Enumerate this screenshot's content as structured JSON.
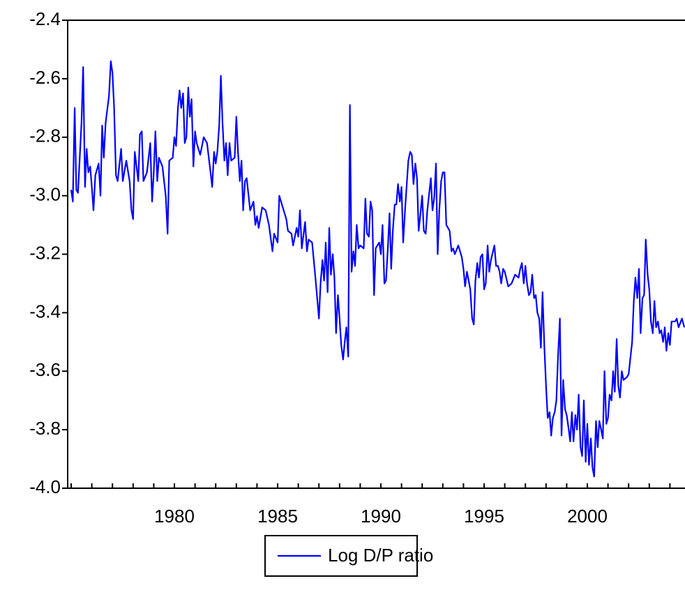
{
  "chart_data": {
    "type": "line",
    "x": [
      1975.0,
      1975.08,
      1975.17,
      1975.25,
      1975.33,
      1975.5,
      1975.58,
      1975.67,
      1975.75,
      1975.83,
      1975.92,
      1976.0,
      1976.08,
      1976.17,
      1976.33,
      1976.42,
      1976.5,
      1976.58,
      1976.67,
      1976.83,
      1976.92,
      1977.0,
      1977.08,
      1977.17,
      1977.25,
      1977.42,
      1977.5,
      1977.67,
      1977.83,
      1977.92,
      1978.0,
      1978.08,
      1978.25,
      1978.33,
      1978.42,
      1978.5,
      1978.67,
      1978.83,
      1978.92,
      1979.0,
      1979.08,
      1979.17,
      1979.25,
      1979.42,
      1979.58,
      1979.67,
      1979.75,
      1979.92,
      1980.0,
      1980.08,
      1980.17,
      1980.25,
      1980.33,
      1980.42,
      1980.5,
      1980.58,
      1980.67,
      1980.75,
      1980.83,
      1980.92,
      1981.0,
      1981.08,
      1981.25,
      1981.42,
      1981.58,
      1981.75,
      1981.83,
      1981.92,
      1982.0,
      1982.08,
      1982.17,
      1982.25,
      1982.33,
      1982.42,
      1982.5,
      1982.58,
      1982.67,
      1982.75,
      1982.92,
      1983.0,
      1983.08,
      1983.17,
      1983.25,
      1983.33,
      1983.42,
      1983.5,
      1983.67,
      1983.83,
      1983.92,
      1984.0,
      1984.08,
      1984.25,
      1984.42,
      1984.58,
      1984.75,
      1984.83,
      1985.0,
      1985.08,
      1985.25,
      1985.42,
      1985.5,
      1985.67,
      1985.75,
      1985.92,
      1986.0,
      1986.08,
      1986.17,
      1986.33,
      1986.42,
      1986.5,
      1986.67,
      1986.83,
      1987.0,
      1987.08,
      1987.17,
      1987.25,
      1987.33,
      1987.42,
      1987.5,
      1987.58,
      1987.67,
      1987.75,
      1987.83,
      1987.92,
      1988.0,
      1988.08,
      1988.17,
      1988.25,
      1988.33,
      1988.42,
      1988.5,
      1988.58,
      1988.67,
      1988.75,
      1988.83,
      1988.92,
      1989.0,
      1989.17,
      1989.25,
      1989.33,
      1989.42,
      1989.5,
      1989.58,
      1989.67,
      1989.75,
      1989.83,
      1989.92,
      1990.0,
      1990.08,
      1990.17,
      1990.25,
      1990.33,
      1990.42,
      1990.5,
      1990.58,
      1990.67,
      1990.75,
      1990.83,
      1990.92,
      1991.0,
      1991.08,
      1991.17,
      1991.33,
      1991.42,
      1991.5,
      1991.58,
      1991.67,
      1991.75,
      1991.83,
      1991.92,
      1992.0,
      1992.08,
      1992.17,
      1992.25,
      1992.42,
      1992.5,
      1992.58,
      1992.67,
      1992.75,
      1992.83,
      1992.92,
      1993.0,
      1993.08,
      1993.17,
      1993.33,
      1993.42,
      1993.5,
      1993.58,
      1993.75,
      1993.92,
      1994.0,
      1994.08,
      1994.17,
      1994.25,
      1994.33,
      1994.42,
      1994.5,
      1994.58,
      1994.67,
      1994.75,
      1994.83,
      1994.92,
      1995.0,
      1995.08,
      1995.17,
      1995.25,
      1995.33,
      1995.5,
      1995.58,
      1995.67,
      1995.75,
      1995.83,
      1995.92,
      1996.0,
      1996.17,
      1996.33,
      1996.5,
      1996.67,
      1996.75,
      1996.83,
      1996.92,
      1997.0,
      1997.08,
      1997.17,
      1997.25,
      1997.33,
      1997.42,
      1997.5,
      1997.58,
      1997.67,
      1997.75,
      1997.83,
      1997.92,
      1998.0,
      1998.08,
      1998.17,
      1998.25,
      1998.33,
      1998.42,
      1998.5,
      1998.58,
      1998.67,
      1998.75,
      1998.83,
      1998.92,
      1999.0,
      1999.08,
      1999.17,
      1999.25,
      1999.33,
      1999.42,
      1999.5,
      1999.58,
      1999.67,
      1999.75,
      1999.83,
      1999.92,
      2000.0,
      2000.08,
      2000.17,
      2000.25,
      2000.33,
      2000.42,
      2000.5,
      2000.58,
      2000.67,
      2000.75,
      2000.83,
      2000.92,
      2001.0,
      2001.08,
      2001.17,
      2001.25,
      2001.33,
      2001.42,
      2001.5,
      2001.58,
      2001.67,
      2001.75,
      2001.92,
      2002.0,
      2002.17,
      2002.25,
      2002.33,
      2002.42,
      2002.5,
      2002.58,
      2002.67,
      2002.75,
      2002.83,
      2002.92,
      2003.0,
      2003.08,
      2003.17,
      2003.25,
      2003.33,
      2003.42,
      2003.5,
      2003.58,
      2003.67,
      2003.75,
      2003.83,
      2003.92,
      2004.0,
      2004.08,
      2004.25,
      2004.33,
      2004.42,
      2004.58,
      2004.7
    ],
    "series": [
      {
        "name": "Log D/P ratio",
        "color": "#0000ff",
        "values": [
          -2.98,
          -3.02,
          -2.7,
          -2.98,
          -2.99,
          -2.75,
          -2.56,
          -2.97,
          -2.84,
          -2.92,
          -2.9,
          -2.97,
          -3.05,
          -2.93,
          -2.89,
          -3.0,
          -2.76,
          -2.87,
          -2.75,
          -2.66,
          -2.54,
          -2.58,
          -2.7,
          -2.93,
          -2.95,
          -2.84,
          -2.95,
          -2.88,
          -2.95,
          -3.05,
          -3.08,
          -2.85,
          -2.95,
          -2.79,
          -2.78,
          -2.95,
          -2.92,
          -2.82,
          -3.02,
          -2.92,
          -2.78,
          -2.95,
          -2.87,
          -2.9,
          -3.0,
          -3.13,
          -2.88,
          -2.87,
          -2.8,
          -2.83,
          -2.7,
          -2.64,
          -2.7,
          -2.65,
          -2.82,
          -2.8,
          -2.63,
          -2.73,
          -2.67,
          -2.9,
          -2.78,
          -2.82,
          -2.86,
          -2.8,
          -2.82,
          -2.92,
          -2.97,
          -2.85,
          -2.89,
          -2.85,
          -2.76,
          -2.59,
          -2.75,
          -2.88,
          -2.82,
          -2.93,
          -2.82,
          -2.88,
          -2.87,
          -2.73,
          -2.85,
          -2.95,
          -2.88,
          -3.05,
          -2.95,
          -2.94,
          -3.05,
          -3.02,
          -3.1,
          -3.07,
          -3.11,
          -3.04,
          -3.05,
          -3.1,
          -3.19,
          -3.13,
          -3.16,
          -3.0,
          -3.04,
          -3.08,
          -3.12,
          -3.13,
          -3.17,
          -3.11,
          -3.14,
          -3.05,
          -3.18,
          -3.09,
          -3.19,
          -3.15,
          -3.16,
          -3.28,
          -3.42,
          -3.3,
          -3.22,
          -3.29,
          -3.16,
          -3.33,
          -3.11,
          -3.27,
          -3.2,
          -3.28,
          -3.47,
          -3.34,
          -3.42,
          -3.51,
          -3.56,
          -3.5,
          -3.45,
          -3.55,
          -2.69,
          -3.26,
          -3.19,
          -3.24,
          -3.1,
          -3.18,
          -3.17,
          -3.18,
          -3.01,
          -3.13,
          -3.14,
          -3.02,
          -3.05,
          -3.34,
          -3.18,
          -3.17,
          -3.16,
          -3.2,
          -3.1,
          -3.3,
          -3.29,
          -3.19,
          -3.06,
          -3.25,
          -3.12,
          -3.03,
          -3.03,
          -2.96,
          -3.02,
          -2.97,
          -3.16,
          -3.05,
          -2.88,
          -2.85,
          -2.86,
          -2.96,
          -2.89,
          -2.94,
          -3.12,
          -3.06,
          -3.0,
          -3.12,
          -3.13,
          -3.05,
          -2.94,
          -3.05,
          -3.01,
          -2.89,
          -3.2,
          -3.05,
          -2.95,
          -2.92,
          -2.92,
          -3.1,
          -3.12,
          -3.19,
          -3.18,
          -3.2,
          -3.17,
          -3.21,
          -3.25,
          -3.31,
          -3.26,
          -3.29,
          -3.32,
          -3.42,
          -3.44,
          -3.29,
          -3.23,
          -3.28,
          -3.21,
          -3.2,
          -3.32,
          -3.3,
          -3.17,
          -3.26,
          -3.22,
          -3.17,
          -3.24,
          -3.24,
          -3.26,
          -3.3,
          -3.25,
          -3.26,
          -3.31,
          -3.3,
          -3.27,
          -3.28,
          -3.25,
          -3.23,
          -3.3,
          -3.24,
          -3.3,
          -3.34,
          -3.33,
          -3.27,
          -3.35,
          -3.34,
          -3.4,
          -3.42,
          -3.52,
          -3.33,
          -3.52,
          -3.65,
          -3.76,
          -3.74,
          -3.82,
          -3.76,
          -3.74,
          -3.7,
          -3.55,
          -3.42,
          -3.82,
          -3.63,
          -3.73,
          -3.75,
          -3.79,
          -3.84,
          -3.74,
          -3.84,
          -3.75,
          -3.8,
          -3.68,
          -3.86,
          -3.89,
          -3.7,
          -3.91,
          -3.78,
          -3.92,
          -3.83,
          -3.93,
          -3.96,
          -3.77,
          -3.86,
          -3.77,
          -3.8,
          -3.83,
          -3.6,
          -3.78,
          -3.76,
          -3.68,
          -3.7,
          -3.6,
          -3.67,
          -3.49,
          -3.65,
          -3.69,
          -3.6,
          -3.63,
          -3.62,
          -3.61,
          -3.5,
          -3.36,
          -3.28,
          -3.35,
          -3.25,
          -3.47,
          -3.35,
          -3.34,
          -3.15,
          -3.27,
          -3.32,
          -3.43,
          -3.47,
          -3.36,
          -3.45,
          -3.43,
          -3.47,
          -3.46,
          -3.5,
          -3.45,
          -3.53,
          -3.47,
          -3.51,
          -3.43,
          -3.43,
          -3.42,
          -3.45,
          -3.42,
          -3.45
        ]
      }
    ],
    "xlim": [
      1974.83,
      2004.73
    ],
    "xticks": [
      1980,
      1985,
      1990,
      1995,
      2000
    ],
    "xminorticks": [
      1975,
      1976,
      1977,
      1978,
      1979,
      1980,
      1981,
      1982,
      1983,
      1984,
      1985,
      1986,
      1987,
      1988,
      1989,
      1990,
      1991,
      1992,
      1993,
      1994,
      1995,
      1996,
      1997,
      1998,
      1999,
      2000,
      2001,
      2002,
      2003,
      2004
    ],
    "ylim": [
      -4.0,
      -2.4
    ],
    "yticks": [
      {
        "value": -4,
        "label": "-4.0"
      },
      -3.8,
      -3.6,
      -3.4,
      -3.2,
      {
        "value": -3,
        "label": "-3.0"
      },
      -2.8,
      -2.6,
      -2.4
    ],
    "legend": "bottom"
  }
}
